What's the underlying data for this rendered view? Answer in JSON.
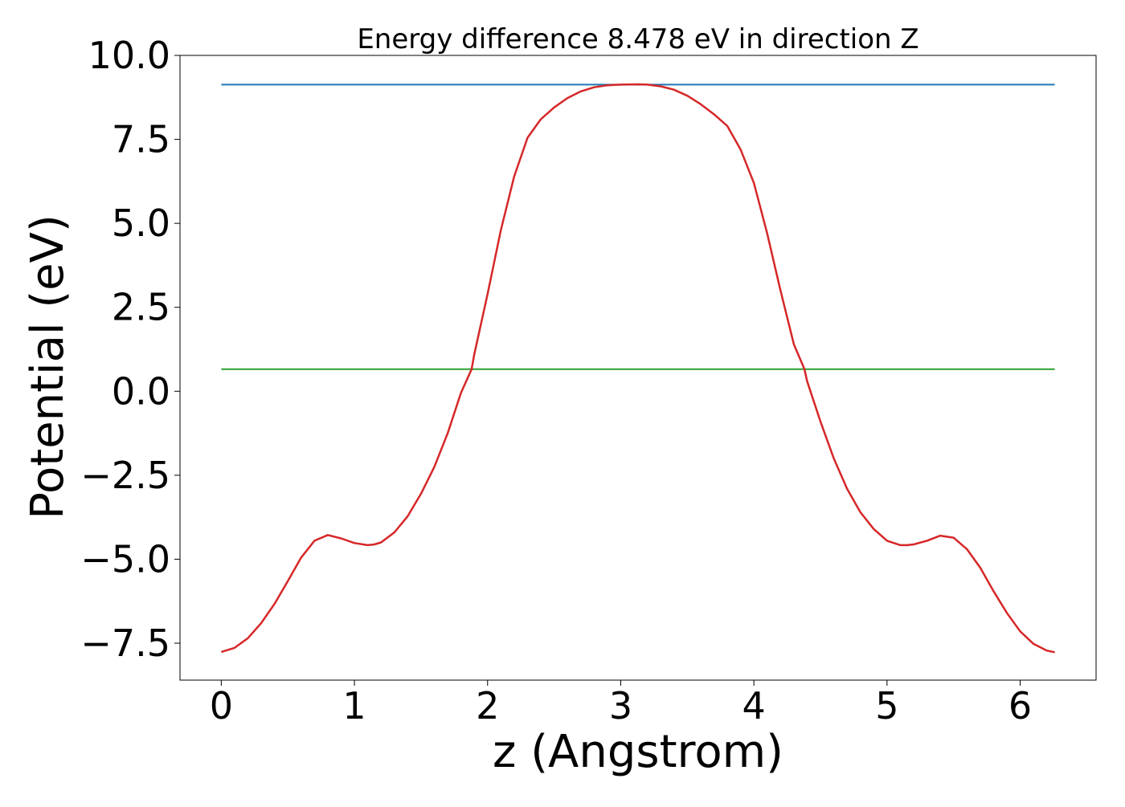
{
  "chart_data": {
    "type": "line",
    "title": "Energy difference 8.478 eV in direction Z",
    "xlabel": "z (Angstrom)",
    "ylabel": "Potential (eV)",
    "xlim": [
      -0.31,
      6.57
    ],
    "ylim": [
      -8.6,
      10.0
    ],
    "x_ticks": [
      0,
      1,
      2,
      3,
      4,
      5,
      6
    ],
    "x_tick_labels": [
      "0",
      "1",
      "2",
      "3",
      "4",
      "5",
      "6"
    ],
    "y_ticks": [
      -7.5,
      -5.0,
      -2.5,
      0.0,
      2.5,
      5.0,
      7.5,
      10.0
    ],
    "y_tick_labels": [
      "−7.5",
      "−5.0",
      "−2.5",
      "0.0",
      "2.5",
      "5.0",
      "7.5",
      "10.0"
    ],
    "grid": false,
    "series": [
      {
        "color": "#1f77b4",
        "x": [
          0,
          6.26
        ],
        "y": [
          9.13,
          9.13
        ]
      },
      {
        "color": "#2ca02c",
        "x": [
          0,
          6.26
        ],
        "y": [
          0.66,
          0.66
        ]
      },
      {
        "color": "#d62728",
        "x": [
          0.0,
          0.1,
          0.2,
          0.3,
          0.4,
          0.5,
          0.6,
          0.7,
          0.8,
          0.9,
          1.0,
          1.1,
          1.15,
          1.2,
          1.3,
          1.4,
          1.5,
          1.6,
          1.7,
          1.8,
          1.88,
          1.9,
          2.0,
          2.1,
          2.2,
          2.3,
          2.4,
          2.5,
          2.6,
          2.7,
          2.8,
          2.9,
          3.0,
          3.13,
          3.2,
          3.3,
          3.4,
          3.5,
          3.6,
          3.7,
          3.8,
          3.9,
          4.0,
          4.1,
          4.2,
          4.3,
          4.38,
          4.4,
          4.5,
          4.6,
          4.7,
          4.8,
          4.9,
          5.0,
          5.1,
          5.15,
          5.2,
          5.3,
          5.4,
          5.5,
          5.6,
          5.7,
          5.8,
          5.9,
          6.0,
          6.1,
          6.2,
          6.26
        ],
        "y": [
          -7.76,
          -7.64,
          -7.35,
          -6.9,
          -6.33,
          -5.65,
          -4.95,
          -4.45,
          -4.28,
          -4.38,
          -4.52,
          -4.58,
          -4.56,
          -4.5,
          -4.2,
          -3.72,
          -3.05,
          -2.25,
          -1.25,
          -0.05,
          0.66,
          1.1,
          2.9,
          4.8,
          6.4,
          7.55,
          8.1,
          8.45,
          8.73,
          8.93,
          9.05,
          9.11,
          9.13,
          9.14,
          9.13,
          9.08,
          8.98,
          8.8,
          8.55,
          8.25,
          7.9,
          7.2,
          6.2,
          4.7,
          3.0,
          1.4,
          0.66,
          0.3,
          -0.9,
          -2.0,
          -2.9,
          -3.6,
          -4.1,
          -4.45,
          -4.58,
          -4.58,
          -4.56,
          -4.45,
          -4.3,
          -4.36,
          -4.7,
          -5.25,
          -5.95,
          -6.6,
          -7.15,
          -7.52,
          -7.72,
          -7.77
        ]
      }
    ]
  }
}
